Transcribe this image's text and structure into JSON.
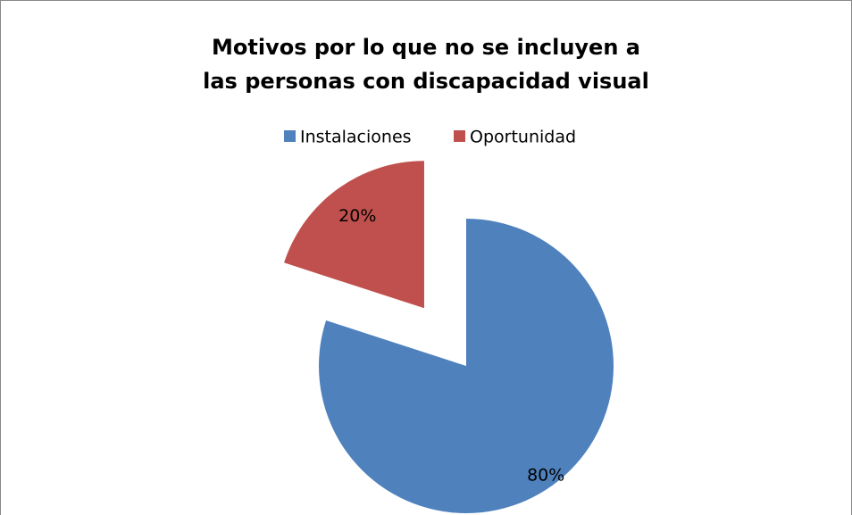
{
  "chart_data": {
    "type": "pie",
    "title": "Motivos por lo que no se incluyen a las personas con discapacidad visual",
    "categories": [
      "Instalaciones",
      "Oportunidad"
    ],
    "values": [
      80,
      20
    ],
    "value_labels": [
      "80%",
      "20%"
    ],
    "colors": [
      "#4f81bd",
      "#c0504d"
    ],
    "exploded": [
      false,
      true
    ],
    "legend": "top"
  }
}
